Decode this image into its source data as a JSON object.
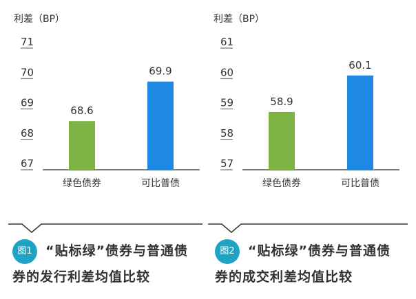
{
  "chart_data": [
    {
      "type": "bar",
      "ylabel": "利差（BP）",
      "yticks": [
        "71",
        "70",
        "69",
        "68",
        "67"
      ],
      "ylim": [
        67,
        71
      ],
      "categories": [
        "绿色债券",
        "可比普债"
      ],
      "values": [
        68.6,
        69.9
      ],
      "value_labels": [
        "68.6",
        "69.9"
      ],
      "colors": [
        "#7cb342",
        "#1e88e5"
      ]
    },
    {
      "type": "bar",
      "ylabel": "利差（BP）",
      "yticks": [
        "61",
        "60",
        "59",
        "58",
        "57"
      ],
      "ylim": [
        57,
        61
      ],
      "categories": [
        "绿色债券",
        "可比普债"
      ],
      "values": [
        58.9,
        60.1
      ],
      "value_labels": [
        "58.9",
        "60.1"
      ],
      "colors": [
        "#7cb342",
        "#1e88e5"
      ]
    }
  ],
  "captions": [
    {
      "badge": "图1",
      "line1": "“贴标绿”债券与普通债",
      "line2": "券的发行利差均值比较"
    },
    {
      "badge": "图2",
      "line1": "“贴标绿”债券与普通债",
      "line2": "券的成交利差均值比较"
    }
  ],
  "colors": {
    "accent": "#1fa3c4",
    "green": "#7cb342",
    "blue": "#1e88e5"
  }
}
